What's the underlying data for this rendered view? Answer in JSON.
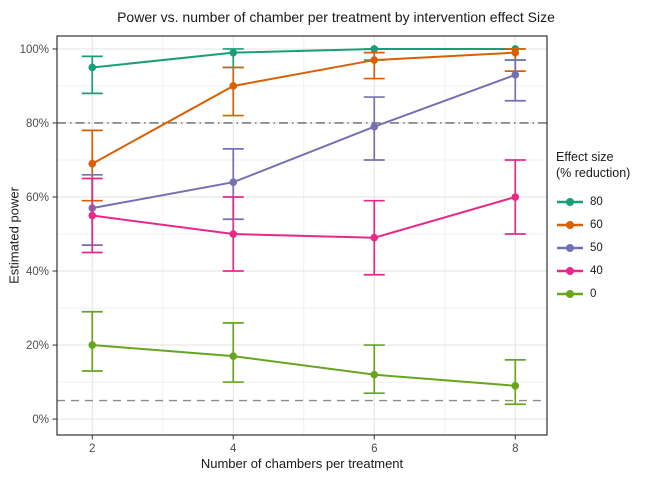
{
  "title": "Power vs. number of chamber per treatment by intervention effect Size",
  "chart_data": {
    "type": "line",
    "title": "Power vs. number of chamber per treatment by intervention effect Size",
    "xlabel": "Number of chambers per treatment",
    "ylabel": "Estimated power",
    "x": [
      2,
      4,
      6,
      8
    ],
    "x_tick_labels": [
      "2",
      "4",
      "6",
      "8"
    ],
    "x_minor": [
      3,
      5,
      7
    ],
    "y_ticks": [
      0,
      20,
      40,
      60,
      80,
      100
    ],
    "y_tick_labels": [
      "0%",
      "20%",
      "40%",
      "60%",
      "80%",
      "100%"
    ],
    "y_minor": [
      10,
      30,
      50,
      70,
      90
    ],
    "xlim": [
      1.5,
      8.45
    ],
    "ylim": [
      -4.3,
      103.5
    ],
    "grid": true,
    "legend_position": "right",
    "legend_title_line1": "Effect size",
    "legend_title_line2": "(% reduction)",
    "reference_lines": [
      {
        "y": 80,
        "style": "dash-dot",
        "color": "#666666"
      },
      {
        "y": 5,
        "style": "dashed",
        "color": "#8c8c8c"
      }
    ],
    "series": [
      {
        "name": "80",
        "color": "#1B9E77",
        "values": [
          95,
          99,
          100,
          100
        ],
        "err_low": [
          88,
          95,
          97,
          97
        ],
        "err_high": [
          98,
          100,
          100,
          100
        ]
      },
      {
        "name": "60",
        "color": "#D95F02",
        "values": [
          69,
          90,
          97,
          99
        ],
        "err_low": [
          59,
          82,
          92,
          94
        ],
        "err_high": [
          78,
          95,
          99,
          100
        ]
      },
      {
        "name": "50",
        "color": "#7570B3",
        "values": [
          57,
          64,
          79,
          93
        ],
        "err_low": [
          47,
          54,
          70,
          86
        ],
        "err_high": [
          66,
          73,
          87,
          97
        ]
      },
      {
        "name": "40",
        "color": "#E7298A",
        "values": [
          55,
          50,
          49,
          60
        ],
        "err_low": [
          45,
          40,
          39,
          50
        ],
        "err_high": [
          65,
          60,
          59,
          70
        ]
      },
      {
        "name": "0",
        "color": "#66A61E",
        "values": [
          20,
          17,
          12,
          9
        ],
        "err_low": [
          13,
          10,
          7,
          4
        ],
        "err_high": [
          29,
          26,
          20,
          16
        ]
      }
    ],
    "colors": {
      "grid_major": "#e3e3e3",
      "grid_minor": "#f1f1f1",
      "panel_border": "#333333",
      "tick_label": "#4d4d4d"
    }
  }
}
